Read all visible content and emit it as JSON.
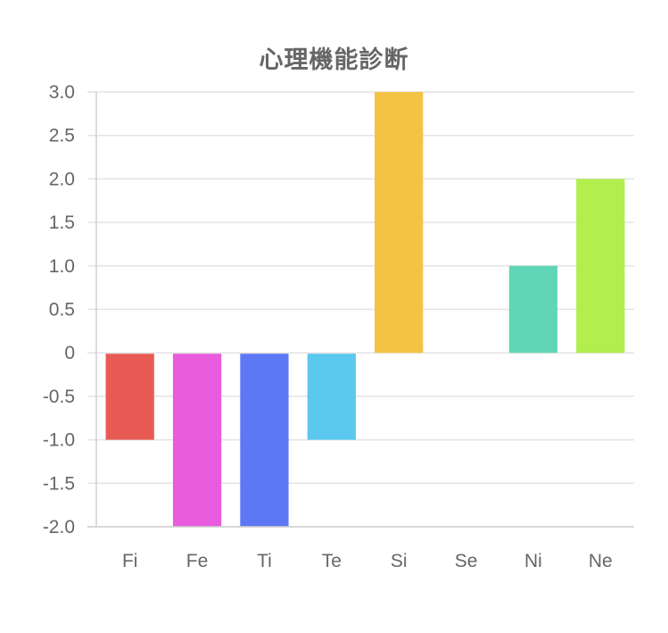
{
  "chart_data": {
    "type": "bar",
    "title": "心理機能診断",
    "xlabel": "",
    "ylabel": "",
    "categories": [
      "Fi",
      "Fe",
      "Ti",
      "Te",
      "Si",
      "Se",
      "Ni",
      "Ne"
    ],
    "values": [
      -1,
      -2,
      -2,
      -1,
      3,
      0,
      1,
      2
    ],
    "bar_colors": [
      "#E85B55",
      "#E85CDD",
      "#5D78F5",
      "#5BC8EE",
      "#F4C244",
      "#FFFFFF",
      "#60D6B7",
      "#B1EE4E"
    ],
    "ylim": [
      -2,
      3
    ],
    "yticks": [
      "3.0",
      "2.5",
      "2.0",
      "1.5",
      "1.0",
      "0.5",
      "0",
      "-0.5",
      "-1.0",
      "-1.5",
      "-2.0"
    ],
    "grid": true,
    "legend": false,
    "colors": {
      "grid": "#E3E3E3",
      "axis": "#D0D0D0",
      "text": "#666666"
    }
  }
}
